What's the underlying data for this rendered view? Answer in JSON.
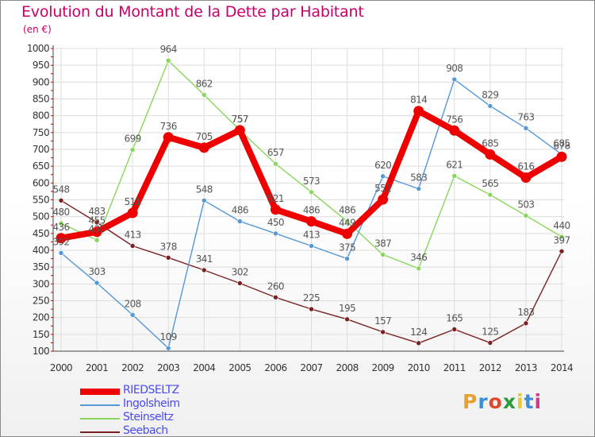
{
  "header": {
    "title": "Evolution du Montant de la Dette par Habitant",
    "unit": "(en €)"
  },
  "logo": {
    "text": "Proxiti",
    "colors": [
      "#e8a12b",
      "#3a8fd8",
      "#e04a2a",
      "#2a9d3a",
      "#e8c82b",
      "#3a8fd8",
      "#d03a8a"
    ]
  },
  "chart_data": {
    "type": "line",
    "title": "Evolution du Montant de la Dette par Habitant",
    "subtitle": "(en €)",
    "xlabel": "",
    "ylabel": "",
    "x": [
      "2000",
      "2001",
      "2002",
      "2003",
      "2004",
      "2005",
      "2006",
      "2007",
      "2008",
      "2009",
      "2010",
      "2011",
      "2012",
      "2013",
      "2014"
    ],
    "ylim": [
      100,
      1000
    ],
    "yticks": [
      100,
      150,
      200,
      250,
      300,
      350,
      400,
      450,
      500,
      550,
      600,
      650,
      700,
      750,
      800,
      850,
      900,
      950,
      1000
    ],
    "grid": true,
    "legend_position": "bottom-left",
    "series": [
      {
        "name": "RIEDSELTZ",
        "color": "#ee0000",
        "thick": true,
        "values": [
          436,
          455,
          511,
          736,
          705,
          757,
          521,
          486,
          449,
          551,
          814,
          756,
          685,
          616,
          678
        ]
      },
      {
        "name": "Ingolsheim",
        "color": "#5598d6",
        "thick": false,
        "values": [
          392,
          303,
          208,
          109,
          548,
          486,
          450,
          413,
          375,
          620,
          583,
          908,
          829,
          763,
          685
        ]
      },
      {
        "name": "Steinseltz",
        "color": "#88d65a",
        "thick": false,
        "values": [
          480,
          430,
          699,
          964,
          862,
          757,
          657,
          573,
          486,
          387,
          346,
          621,
          565,
          503,
          440
        ]
      },
      {
        "name": "Seebach",
        "color": "#7b2020",
        "thick": false,
        "values": [
          548,
          483,
          413,
          378,
          341,
          302,
          260,
          225,
          195,
          157,
          124,
          165,
          125,
          183,
          397
        ]
      }
    ],
    "labels": [
      [
        "436",
        "455",
        "511",
        "736",
        "705",
        "757",
        "521",
        "486",
        "449",
        "551",
        "814",
        "756",
        "685",
        "616",
        "678"
      ],
      [
        "392",
        "303",
        "208",
        "109",
        "548",
        "486",
        "450",
        "413",
        "375",
        "620",
        "583",
        "908",
        "829",
        "763",
        "685"
      ],
      [
        "480",
        "430",
        "699",
        "964",
        "862",
        "757",
        "657",
        "573",
        "486",
        "387",
        "346",
        "621",
        "565",
        "503",
        "440"
      ],
      [
        "548",
        "483",
        "413",
        "378",
        "341",
        "302",
        "260",
        "225",
        "195",
        "157",
        "124",
        "165",
        "125",
        "183",
        "397"
      ]
    ]
  }
}
